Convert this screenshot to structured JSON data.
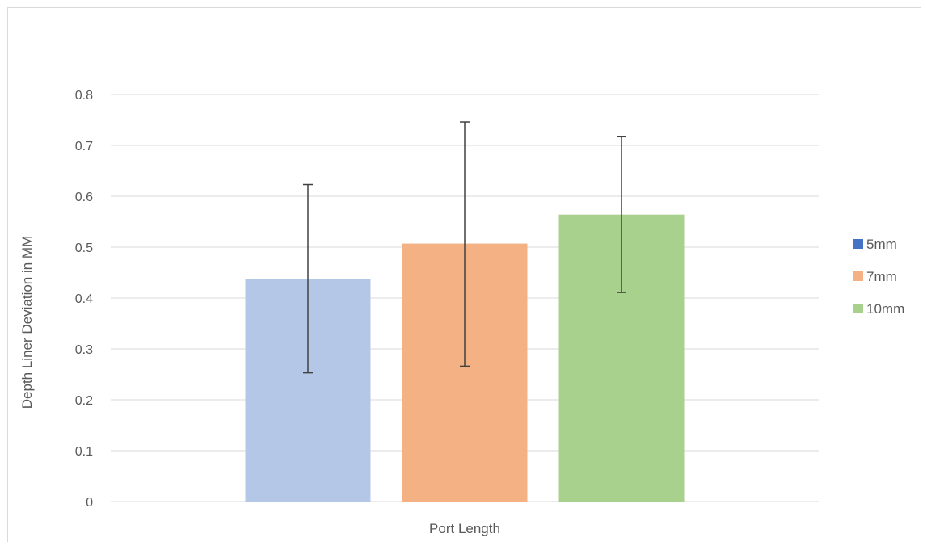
{
  "chart_data": {
    "type": "bar",
    "title": "",
    "xlabel": "Port Length",
    "ylabel": "Depth Liner Deviation in MM",
    "categories": [
      "Port Length"
    ],
    "ylim": [
      0,
      0.8
    ],
    "yticks": [
      "0",
      "0.1",
      "0.2",
      "0.3",
      "0.4",
      "0.5",
      "0.6",
      "0.7",
      "0.8"
    ],
    "grid": true,
    "legend_position": "right",
    "series": [
      {
        "name": "5mm",
        "value": 0.438,
        "error_low": 0.253,
        "error_high": 0.623,
        "bar_color": "#b4c7e7",
        "legend_color": "#4472c4"
      },
      {
        "name": "7mm",
        "value": 0.507,
        "error_low": 0.266,
        "error_high": 0.746,
        "bar_color": "#f4b183",
        "legend_color": "#f4b183"
      },
      {
        "name": "10mm",
        "value": 0.564,
        "error_low": 0.411,
        "error_high": 0.717,
        "bar_color": "#a9d18e",
        "legend_color": "#a9d18e"
      }
    ]
  }
}
